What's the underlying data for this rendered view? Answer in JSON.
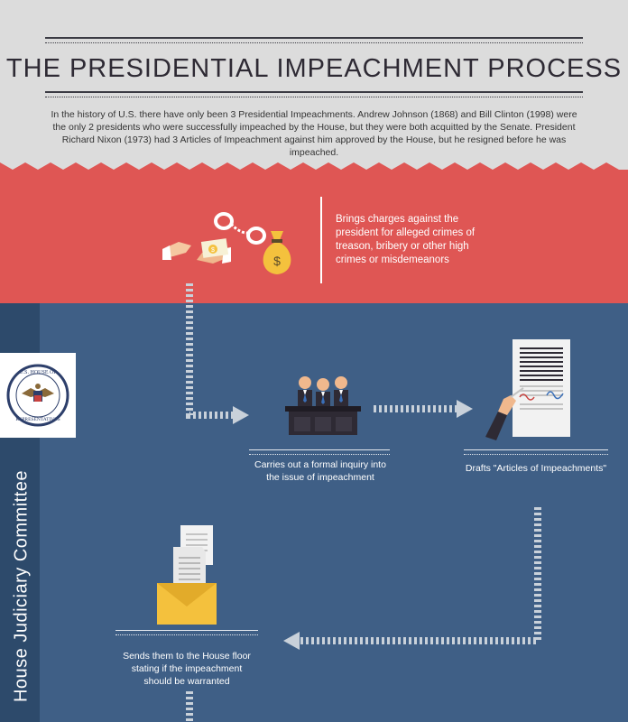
{
  "header": {
    "title": "THE PRESIDENTIAL IMPEACHMENT PROCESS",
    "intro": "In the history of U.S. there have only been 3 Presidential Impeachments. Andrew Johnson (1868) and Bill Clinton (1998) were the only 2 presidents who were successfully impeached by the House, but they were both acquitted by the Senate. President Richard Nixon (1973) had 3 Articles of Impeachment against him approved by the House, but he resigned before he was impeached."
  },
  "charges": {
    "text": "Brings charges against the president for alleged crimes of treason, bribery or other high crimes or misdemeanors",
    "money_symbol": "$"
  },
  "committee": {
    "label": "House Judiciary Committee",
    "seal_text": "U.S. HOUSE OF REPRESENTATIVES"
  },
  "steps": {
    "inquiry": "Carries out a formal inquiry into the issue of impeachment",
    "articles": "Drafts \"Articles of Impeachments\"",
    "floor": "Sends them to the House floor stating if the impeachment should be warranted"
  },
  "colors": {
    "header_bg": "#dcdcdc",
    "red_band": "#df5654",
    "blue_band": "#3f5f86",
    "sidebar": "#2d4a6b",
    "dotted": "#c9d1da",
    "gold": "#f4c13d",
    "dark": "#2e2a34"
  }
}
